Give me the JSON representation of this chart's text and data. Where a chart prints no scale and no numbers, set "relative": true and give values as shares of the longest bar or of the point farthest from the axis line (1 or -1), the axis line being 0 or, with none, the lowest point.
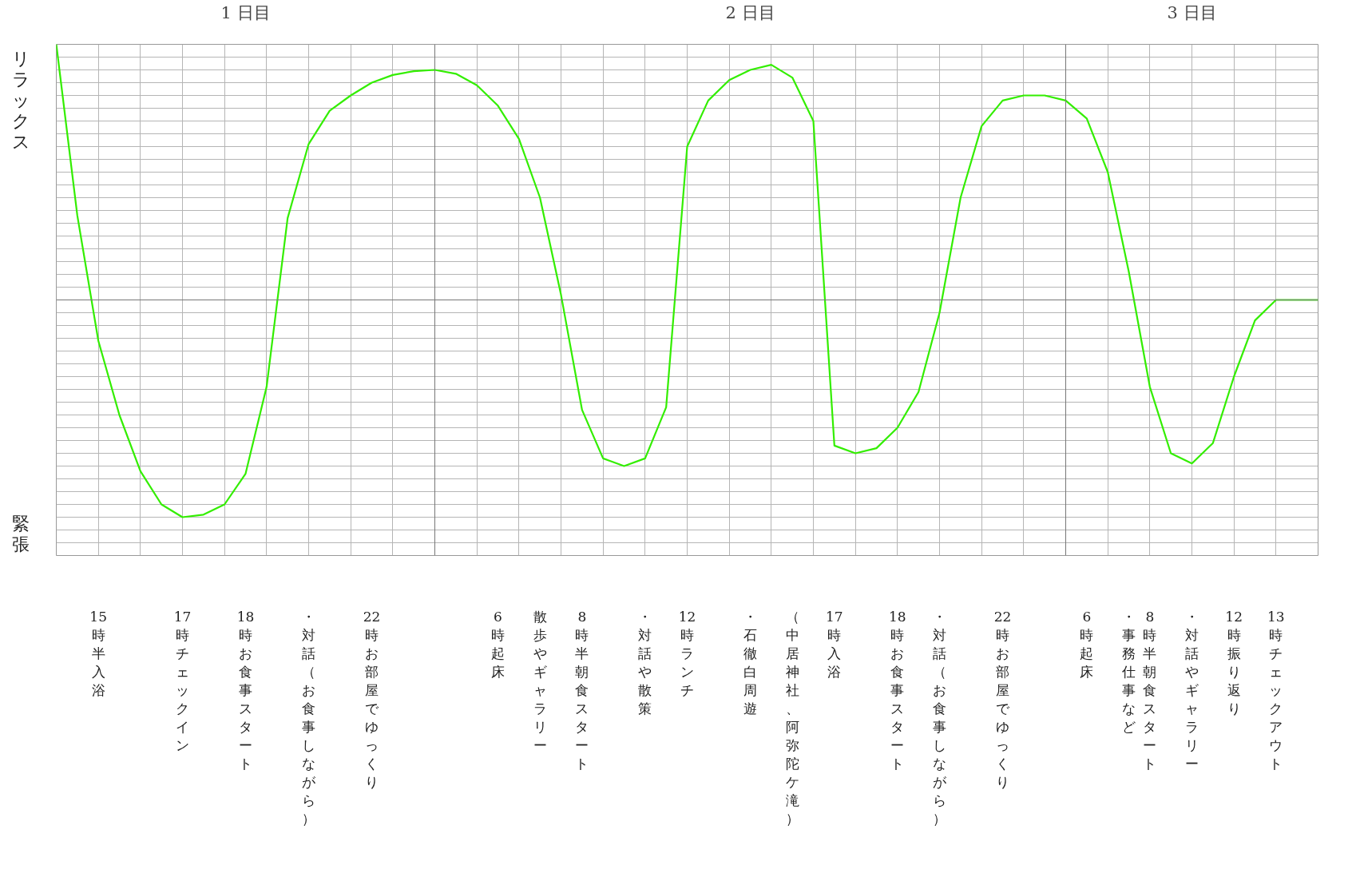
{
  "chart_data": {
    "type": "line",
    "relative": true,
    "grid": true,
    "marker": "none",
    "line_style": "solid",
    "categories": [
      null,
      null,
      "15時半入浴",
      null,
      null,
      null,
      "17時チェックイン",
      null,
      null,
      "18時お食事スタート",
      null,
      null,
      "・対話（お食事しながら）",
      null,
      null,
      "22時お部屋でゆっくり",
      null,
      null,
      null,
      null,
      null,
      "6時起床",
      null,
      "散歩やギャラリー",
      null,
      "8時半朝食スタート",
      null,
      null,
      "・対話や散策",
      null,
      "12時ランチ",
      null,
      null,
      "・石徹白周遊",
      null,
      "（中居神社、阿弥陀ケ滝）",
      null,
      "17時入浴",
      null,
      null,
      "18時お食事スタート",
      null,
      "・対話（お食事しながら）",
      null,
      null,
      "22時お部屋でゆっくり",
      null,
      null,
      null,
      "6時起床",
      null,
      "・事務仕事など",
      "8時半朝食スタート",
      null,
      "・対話やギャラリー",
      null,
      "12時振り返り",
      null,
      "13時チェックアウト",
      null,
      null
    ],
    "annotations": [
      "1 日目",
      "2 日目",
      "3 日目",
      "リラックス",
      "緊張"
    ],
    "series": [
      {
        "color": "#33ee00",
        "values": [
          1.0,
          0.33,
          -0.16,
          -0.45,
          -0.67,
          -0.8,
          -0.85,
          -0.84,
          -0.8,
          -0.68,
          -0.34,
          0.32,
          0.61,
          0.74,
          0.8,
          0.85,
          0.88,
          0.895,
          0.9,
          0.885,
          0.84,
          0.76,
          0.63,
          0.4,
          0.02,
          -0.43,
          -0.62,
          -0.65,
          -0.62,
          -0.42,
          0.6,
          0.78,
          0.86,
          0.9,
          0.92,
          0.87,
          0.7,
          -0.57,
          -0.6,
          -0.58,
          -0.5,
          -0.36,
          -0.05,
          0.4,
          0.68,
          0.78,
          0.8,
          0.8,
          0.78,
          0.71,
          0.5,
          0.11,
          -0.34,
          -0.6,
          -0.64,
          -0.56,
          -0.3,
          -0.08,
          0,
          0,
          0
        ]
      }
    ]
  }
}
